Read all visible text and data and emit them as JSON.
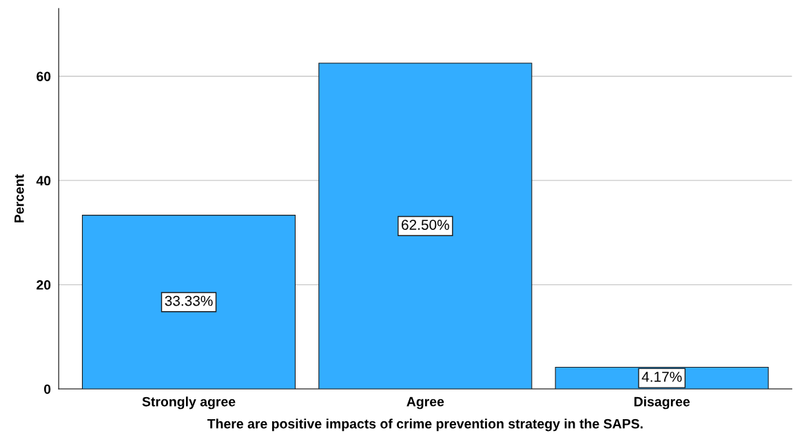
{
  "chart_data": {
    "type": "bar",
    "xlabel": "There are positive impacts of crime prevention strategy in the SAPS.",
    "ylabel": "Percent",
    "categories": [
      "Strongly agree",
      "Agree",
      "Disagree"
    ],
    "values": [
      33.33,
      62.5,
      4.17
    ],
    "value_labels": [
      "33.33%",
      "62.50%",
      "4.17%"
    ],
    "color": "#33adff",
    "ylim": [
      0,
      73
    ],
    "yticks": [
      0,
      20,
      40,
      60
    ],
    "grid": "y"
  }
}
